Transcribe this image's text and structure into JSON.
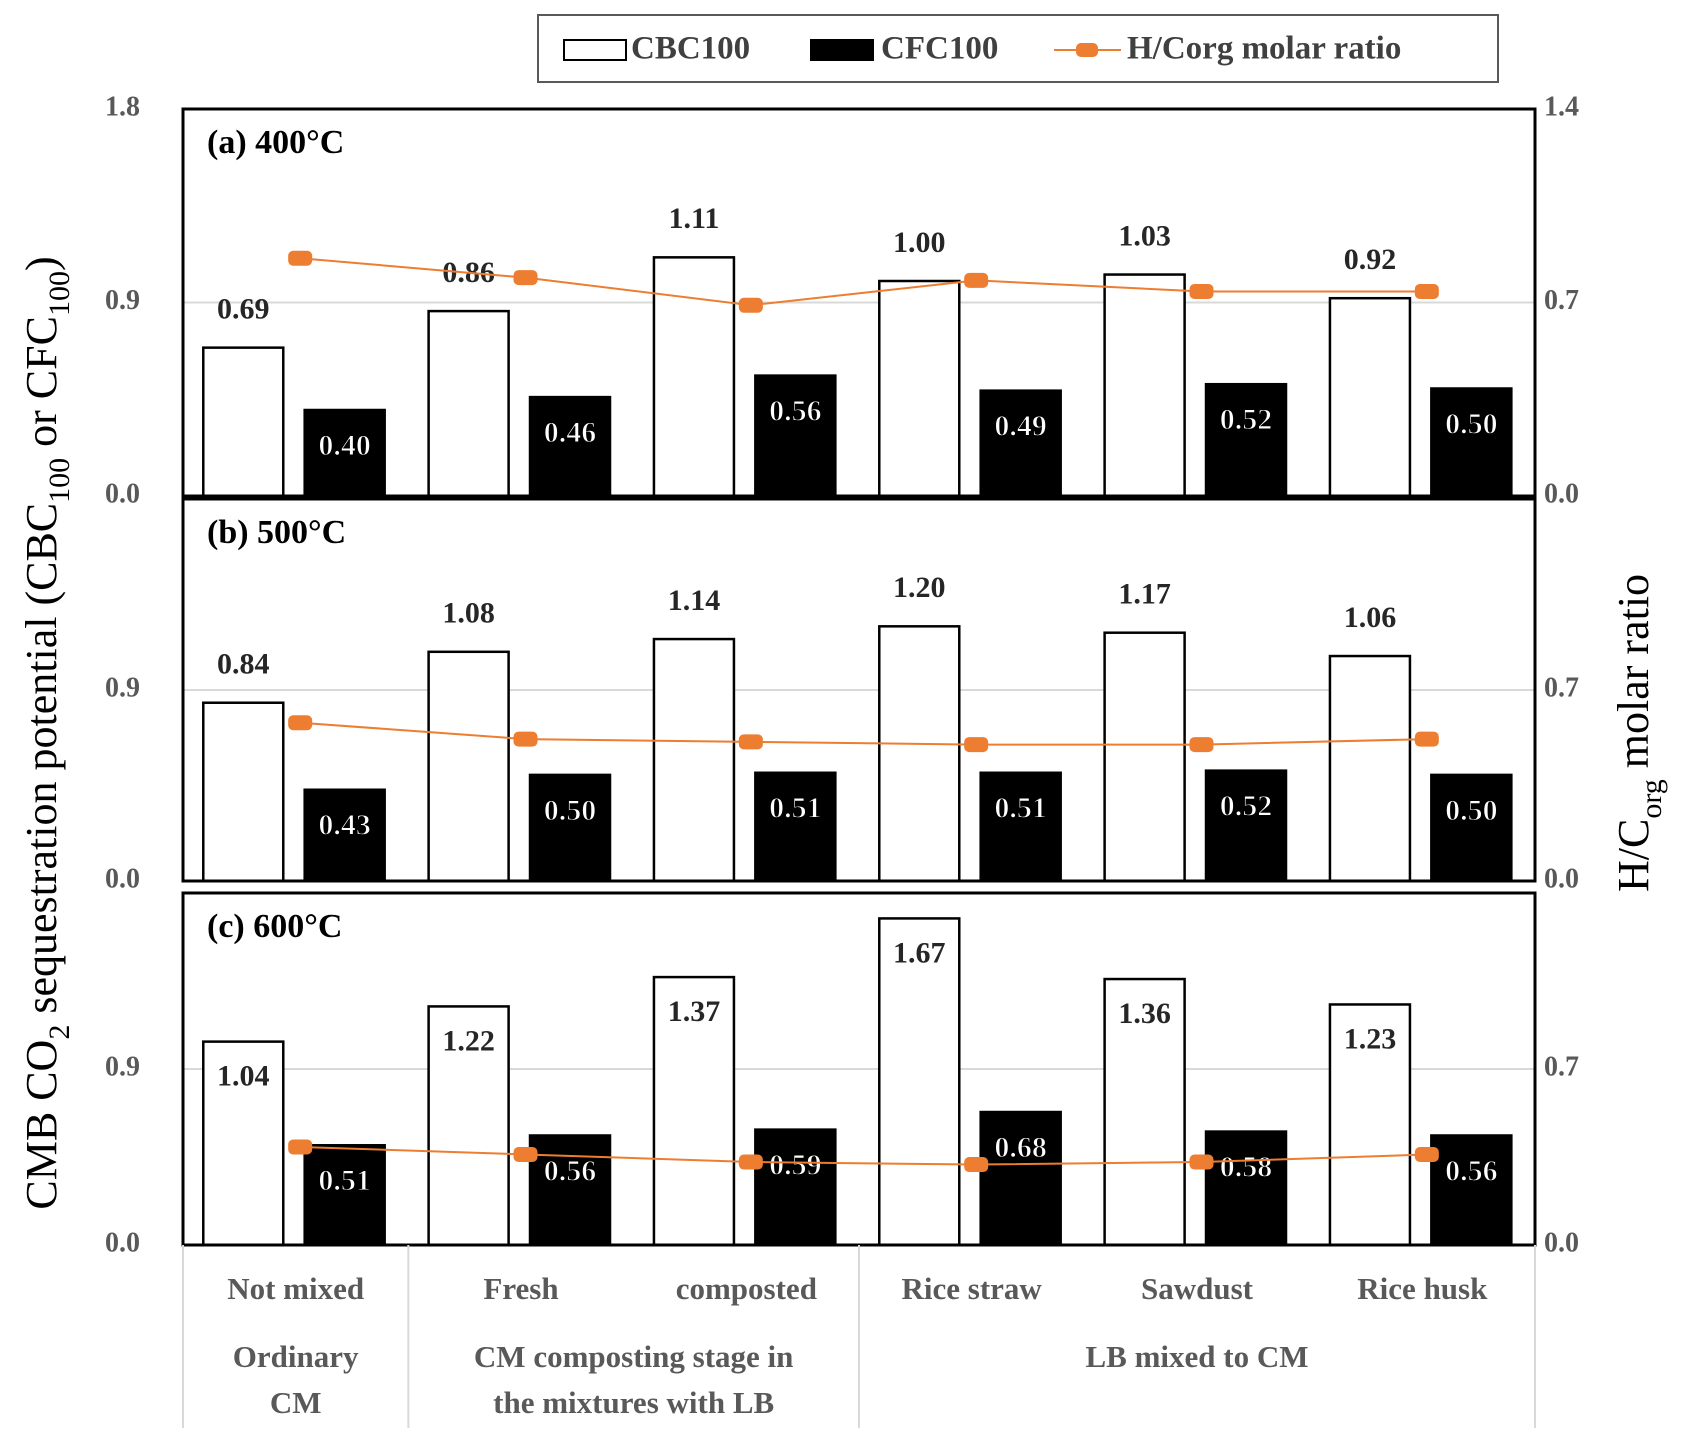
{
  "chart_data": {
    "type": "bar",
    "y_label": [
      "CMB CO",
      "2",
      " sequestration potential (CBC",
      "100",
      " or CFC",
      "100",
      ")"
    ],
    "y2_label": [
      "H/C",
      "org",
      " molar ratio"
    ],
    "groups": [
      {
        "name": [
          "Ordinary",
          "CM"
        ],
        "categories": [
          "Not mixed"
        ]
      },
      {
        "name": [
          "CM composting stage in",
          "the mixtures with LB"
        ],
        "categories": [
          "Fresh",
          "composted"
        ]
      },
      {
        "name": [
          "LB mixed to CM"
        ],
        "categories": [
          "Rice straw",
          "Sawdust",
          "Rice husk"
        ]
      }
    ],
    "series": [
      {
        "name": "CBC100",
        "color": "#ffffff",
        "type": "bar"
      },
      {
        "name": "CFC100",
        "color": "#000000",
        "type": "bar"
      },
      {
        "name": "H/Corg molar ratio",
        "color": "#ed7d31",
        "type": "line",
        "axis": "y2"
      }
    ],
    "grid": true,
    "panels": [
      {
        "title": "(a) 400°C",
        "ylim": [
          0,
          1.8
        ],
        "yticks": [
          {
            "value": 0,
            "label": "0.0"
          },
          0.9,
          1.8
        ],
        "y2lim": [
          0,
          1.4
        ],
        "y2ticks": [
          {
            "value": 0,
            "label": "0.0"
          },
          0.7,
          1.4
        ],
        "series": [
          {
            "values": [
              0.69,
              0.86,
              1.11,
              1.0,
              1.03,
              0.92
            ],
            "value_labels": [
              "0.69",
              "0.86",
              "1.11",
              "1.00",
              "1.03",
              "0.92"
            ]
          },
          {
            "values": [
              0.4,
              0.46,
              0.56,
              0.49,
              0.52,
              0.5
            ],
            "value_labels": [
              "0.40",
              "0.46",
              "0.56",
              "0.49",
              "0.52",
              "0.50"
            ]
          },
          {
            "values": [
              0.86,
              0.79,
              0.69,
              0.78,
              0.74,
              0.74
            ]
          }
        ]
      },
      {
        "title": "(b) 500°C",
        "ylim": [
          0,
          1.8
        ],
        "yticks": [
          {
            "value": 0,
            "label": "0.0"
          },
          0.9
        ],
        "y2lim": [
          0,
          1.4
        ],
        "y2ticks": [
          {
            "value": 0,
            "label": "0.0"
          },
          0.7
        ],
        "series": [
          {
            "values": [
              0.84,
              1.08,
              1.14,
              1.2,
              1.17,
              1.06
            ],
            "value_labels": [
              "0.84",
              "1.08",
              "1.14",
              "1.20",
              "1.17",
              "1.06"
            ]
          },
          {
            "values": [
              0.43,
              0.5,
              0.51,
              0.51,
              0.52,
              0.5
            ],
            "value_labels": [
              "0.43",
              "0.50",
              "0.51",
              "0.51",
              "0.52",
              "0.50"
            ]
          },
          {
            "values": [
              0.58,
              0.52,
              0.51,
              0.5,
              0.5,
              0.52
            ]
          }
        ]
      },
      {
        "title": "(c) 600°C",
        "ylim": [
          0,
          1.8
        ],
        "yticks": [
          {
            "value": 0,
            "label": "0.0"
          },
          0.9
        ],
        "y2lim": [
          0,
          1.4
        ],
        "y2ticks": [
          {
            "value": 0,
            "label": "0.0"
          },
          0.7
        ],
        "series": [
          {
            "values": [
              1.04,
              1.22,
              1.37,
              1.67,
              1.36,
              1.23
            ],
            "value_labels": [
              "1.04",
              "1.22",
              "1.37",
              "1.67",
              "1.36",
              "1.23"
            ]
          },
          {
            "values": [
              0.51,
              0.56,
              0.59,
              0.68,
              0.58,
              0.56
            ],
            "value_labels": [
              "0.51",
              "0.56",
              "0.59",
              "0.68",
              "0.58",
              "0.56"
            ]
          },
          {
            "values": [
              0.39,
              0.36,
              0.33,
              0.32,
              0.33,
              0.36
            ]
          }
        ]
      }
    ]
  }
}
